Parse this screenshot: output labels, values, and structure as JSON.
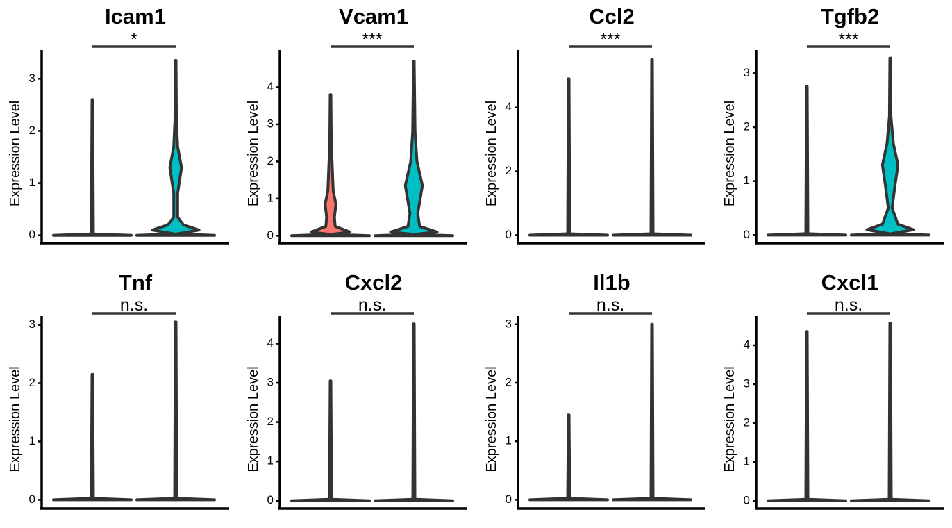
{
  "chart_data": [
    {
      "type": "violin",
      "title": "Icam1",
      "y_label": "Expression Level",
      "significance": "*",
      "ylim": [
        -0.15,
        3.55
      ],
      "yticks": [
        0,
        1,
        2,
        3
      ],
      "series": [
        {
          "color": "#F8766D",
          "max": 2.6,
          "profile": [
            [
              0,
              1
            ]
          ]
        },
        {
          "color": "#00BFC4",
          "max": 3.35,
          "profile": [
            [
              0,
              1
            ],
            [
              0.1,
              0.6
            ],
            [
              0.2,
              0.2
            ],
            [
              0.35,
              0.05
            ],
            [
              0.8,
              0.05
            ],
            [
              1.3,
              0.15
            ],
            [
              1.7,
              0.05
            ],
            [
              2.2,
              0.02
            ]
          ]
        }
      ]
    },
    {
      "type": "violin",
      "title": "Vcam1",
      "y_label": "Expression Level",
      "significance": "***",
      "ylim": [
        -0.2,
        5.0
      ],
      "yticks": [
        0,
        1,
        2,
        3,
        4
      ],
      "series": [
        {
          "color": "#F8766D",
          "max": 3.8,
          "profile": [
            [
              0,
              1
            ],
            [
              0.1,
              0.5
            ],
            [
              0.25,
              0.12
            ],
            [
              0.5,
              0.1
            ],
            [
              0.85,
              0.14
            ],
            [
              1.2,
              0.07
            ],
            [
              1.7,
              0.05
            ],
            [
              2.5,
              0.02
            ]
          ]
        },
        {
          "color": "#00BFC4",
          "max": 4.7,
          "profile": [
            [
              0,
              1
            ],
            [
              0.1,
              0.6
            ],
            [
              0.25,
              0.15
            ],
            [
              0.6,
              0.1
            ],
            [
              1.35,
              0.22
            ],
            [
              2,
              0.08
            ],
            [
              2.8,
              0.03
            ]
          ]
        }
      ]
    },
    {
      "type": "violin",
      "title": "Ccl2",
      "y_label": "Expression Level",
      "significance": "***",
      "ylim": [
        -0.25,
        5.8
      ],
      "yticks": [
        0,
        2,
        4
      ],
      "series": [
        {
          "color": "#F8766D",
          "max": 4.9,
          "profile": [
            [
              0,
              1
            ]
          ]
        },
        {
          "color": "#00BFC4",
          "max": 5.5,
          "profile": [
            [
              0,
              1
            ]
          ]
        }
      ]
    },
    {
      "type": "violin",
      "title": "Tgfb2",
      "y_label": "Expression Level",
      "significance": "***",
      "ylim": [
        -0.15,
        3.43
      ],
      "yticks": [
        0,
        1,
        2,
        3
      ],
      "series": [
        {
          "color": "#F8766D",
          "max": 2.75,
          "profile": [
            [
              0,
              1
            ]
          ]
        },
        {
          "color": "#00BFC4",
          "max": 3.28,
          "profile": [
            [
              0,
              1
            ],
            [
              0.1,
              0.6
            ],
            [
              0.2,
              0.2
            ],
            [
              0.5,
              0.05
            ],
            [
              0.9,
              0.12
            ],
            [
              1.3,
              0.2
            ],
            [
              1.7,
              0.08
            ],
            [
              2.2,
              0.02
            ]
          ]
        }
      ]
    },
    {
      "type": "violin",
      "title": "Tnf",
      "y_label": "Expression Level",
      "significance": "n.s.",
      "ylim": [
        -0.15,
        3.15
      ],
      "yticks": [
        0,
        1,
        2,
        3
      ],
      "series": [
        {
          "color": "#F8766D",
          "max": 2.15,
          "profile": [
            [
              0,
              1
            ]
          ]
        },
        {
          "color": "#00BFC4",
          "max": 3.05,
          "profile": [
            [
              0,
              1
            ]
          ]
        }
      ]
    },
    {
      "type": "violin",
      "title": "Cxcl2",
      "y_label": "Expression Level",
      "significance": "n.s.",
      "ylim": [
        -0.2,
        4.7
      ],
      "yticks": [
        0,
        1,
        2,
        3,
        4
      ],
      "series": [
        {
          "color": "#F8766D",
          "max": 3.05,
          "profile": [
            [
              0,
              1
            ]
          ]
        },
        {
          "color": "#00BFC4",
          "max": 4.5,
          "profile": [
            [
              0,
              1
            ]
          ]
        }
      ]
    },
    {
      "type": "violin",
      "title": "Il1b",
      "y_label": "Expression Level",
      "significance": "n.s.",
      "ylim": [
        -0.15,
        3.14
      ],
      "yticks": [
        0,
        1,
        2,
        3
      ],
      "series": [
        {
          "color": "#F8766D",
          "max": 1.45,
          "profile": [
            [
              0,
              1
            ]
          ]
        },
        {
          "color": "#00BFC4",
          "max": 3.0,
          "profile": [
            [
              0,
              1
            ]
          ]
        }
      ]
    },
    {
      "type": "violin",
      "title": "Cxcl1",
      "y_label": "Expression Level",
      "significance": "n.s.",
      "ylim": [
        -0.2,
        4.75
      ],
      "yticks": [
        0,
        1,
        2,
        3,
        4
      ],
      "series": [
        {
          "color": "#F8766D",
          "max": 4.35,
          "profile": [
            [
              0,
              1
            ]
          ]
        },
        {
          "color": "#00BFC4",
          "max": 4.57,
          "profile": [
            [
              0,
              1
            ]
          ]
        }
      ]
    }
  ]
}
